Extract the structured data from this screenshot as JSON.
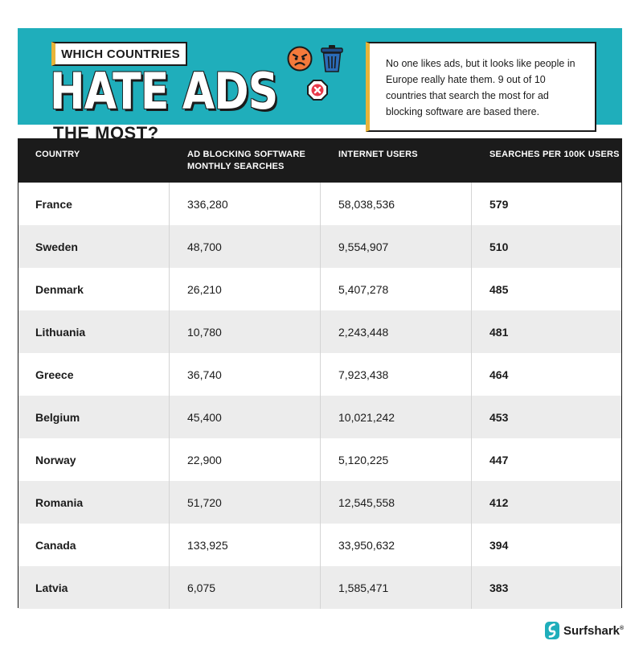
{
  "header": {
    "tag": "WHICH COUNTRIES",
    "title": "HATE ADS",
    "subtitle": "THE MOST?",
    "intro": "No one likes ads, but it looks like people in Europe really hate them. 9 out of 10 countries that search the most for ad blocking software are based there.",
    "icons": [
      "angry-face-icon",
      "trash-can-icon",
      "blocked-icon"
    ]
  },
  "colors": {
    "banner": "#1faebb",
    "accent": "#e8b43a",
    "header_row": "#1b1b1b",
    "stripe": "#ececec"
  },
  "chart_data": {
    "type": "table",
    "columns": [
      "COUNTRY",
      "AD BLOCKING SOFTWARE MONTHLY SEARCHES",
      "INTERNET USERS",
      "SEARCHES PER 100K USERS"
    ],
    "rows": [
      [
        "France",
        "336,280",
        "58,038,536",
        "579"
      ],
      [
        "Sweden",
        "48,700",
        "9,554,907",
        "510"
      ],
      [
        "Denmark",
        "26,210",
        "5,407,278",
        "485"
      ],
      [
        "Lithuania",
        "10,780",
        "2,243,448",
        "481"
      ],
      [
        "Greece",
        "36,740",
        "7,923,438",
        "464"
      ],
      [
        "Belgium",
        "45,400",
        "10,021,242",
        "453"
      ],
      [
        "Norway",
        "22,900",
        "5,120,225",
        "447"
      ],
      [
        "Romania",
        "51,720",
        "12,545,558",
        "412"
      ],
      [
        "Canada",
        "133,925",
        "33,950,632",
        "394"
      ],
      [
        "Latvia",
        "6,075",
        "1,585,471",
        "383"
      ]
    ]
  },
  "footer": {
    "brand": "Surfshark",
    "brand_mark": "®"
  }
}
